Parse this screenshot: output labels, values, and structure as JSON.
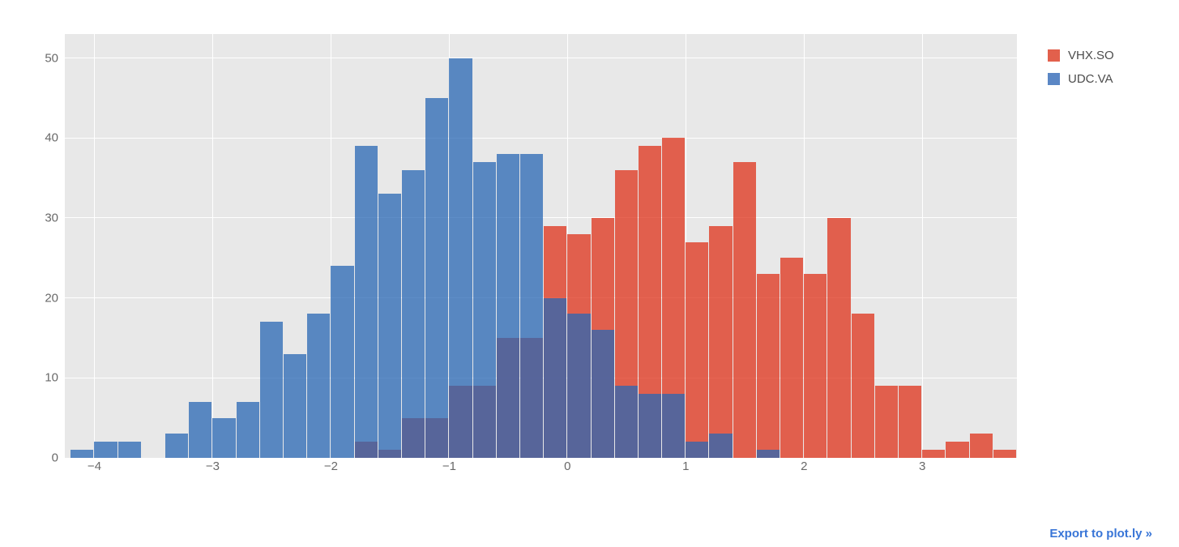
{
  "chart_data": {
    "type": "bar",
    "subtype": "overlaid-histogram",
    "title": "",
    "xlabel": "",
    "ylabel": "",
    "xlim": [
      -4.25,
      3.8
    ],
    "ylim": [
      0,
      53
    ],
    "x_ticks": [
      -4,
      -3,
      -2,
      -1,
      0,
      1,
      2,
      3
    ],
    "y_ticks": [
      0,
      10,
      20,
      30,
      40,
      50
    ],
    "bin_width": 0.2,
    "grid": true,
    "background_color": "#e8e8e8",
    "grid_color": "#ffffff",
    "legend_position": "top-right",
    "series": [
      {
        "name": "VHX.SO",
        "fill": "rgba(223,50,26,0.75)",
        "legend_color": "#e2604c",
        "x0": -1.8,
        "counts": [
          2,
          1,
          5,
          5,
          9,
          9,
          15,
          15,
          29,
          28,
          30,
          36,
          39,
          40,
          27,
          29,
          37,
          23,
          25,
          23,
          30,
          18,
          9,
          9,
          1,
          2,
          3,
          1
        ]
      },
      {
        "name": "UDC.VA",
        "fill": "rgba(40,103,180,0.75)",
        "legend_color": "#5b87c5",
        "x0": -4.2,
        "counts": [
          1,
          2,
          2,
          0,
          3,
          7,
          5,
          7,
          17,
          13,
          18,
          24,
          39,
          33,
          36,
          45,
          50,
          37,
          38,
          38,
          20,
          18,
          16,
          9,
          8,
          8,
          2,
          3,
          0,
          1
        ]
      }
    ]
  },
  "footer": {
    "export_label": "Export to plot.ly »"
  }
}
